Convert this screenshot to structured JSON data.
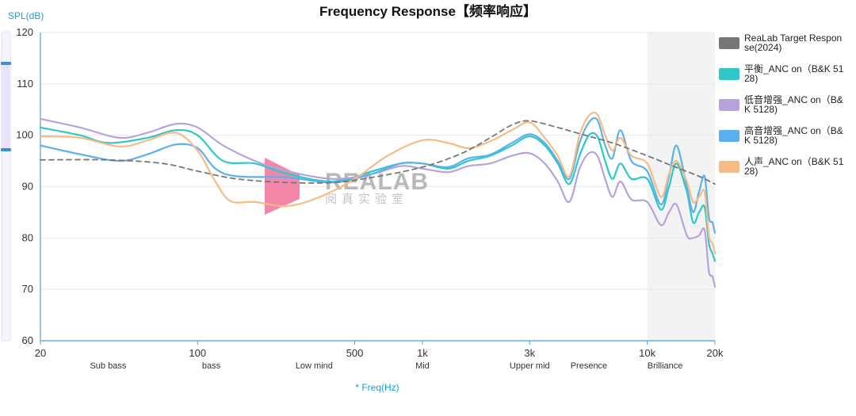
{
  "chart_data": {
    "type": "line",
    "title": "Frequency Response【频率响应】",
    "ylabel": "SPL(dB)",
    "xlabel": "* Freq(Hz)",
    "xscale": "log",
    "xlim": [
      20,
      20000
    ],
    "ylim": [
      60,
      120
    ],
    "y_ticks": [
      60,
      70,
      80,
      90,
      100,
      110,
      120
    ],
    "x_ticks": [
      {
        "value": 20,
        "label": "20"
      },
      {
        "value": 100,
        "label": "100"
      },
      {
        "value": 500,
        "label": "500"
      },
      {
        "value": 1000,
        "label": "1k"
      },
      {
        "value": 3000,
        "label": "3k"
      },
      {
        "value": 10000,
        "label": "10k"
      },
      {
        "value": 20000,
        "label": "20k"
      }
    ],
    "bands": [
      {
        "label": "Sub bass",
        "x": 40
      },
      {
        "label": "bass",
        "x": 115
      },
      {
        "label": "Low mind",
        "x": 330
      },
      {
        "label": "Mid",
        "x": 1000
      },
      {
        "label": "Upper mid",
        "x": 3000
      },
      {
        "label": "Presence",
        "x": 5500
      },
      {
        "label": "Brilliance",
        "x": 12000
      }
    ],
    "shaded_region": [
      10000,
      20000
    ],
    "grid": "horizontal",
    "legend_position": "right",
    "watermark": {
      "brand": "REALAB",
      "sub": "阅真实验室"
    },
    "series": [
      {
        "name": "ReaLab Target Response(2024)",
        "legend_lines": [
          "ReaLab Target Respon",
          "se(2024)"
        ],
        "color": "#777777",
        "dashed": true,
        "points": [
          [
            20,
            95.2
          ],
          [
            40,
            95.2
          ],
          [
            70,
            94.5
          ],
          [
            100,
            93
          ],
          [
            150,
            91.5
          ],
          [
            250,
            90.8
          ],
          [
            400,
            90.8
          ],
          [
            600,
            91.8
          ],
          [
            1000,
            93.8
          ],
          [
            1500,
            96.5
          ],
          [
            2000,
            99.5
          ],
          [
            2500,
            102
          ],
          [
            3000,
            102.8
          ],
          [
            4000,
            101.5
          ],
          [
            5000,
            100.3
          ],
          [
            7000,
            98.5
          ],
          [
            10000,
            96
          ],
          [
            13000,
            94
          ],
          [
            17000,
            92
          ],
          [
            20000,
            90.5
          ]
        ]
      },
      {
        "name": "平衡_ANC on（B&K 5128)",
        "legend_lines": [
          "平衡_ANC on（B&K 51",
          "28)"
        ],
        "color": "#2ec8c8",
        "dashed": false,
        "points": [
          [
            20,
            101.5
          ],
          [
            30,
            100
          ],
          [
            40,
            98.5
          ],
          [
            60,
            99.5
          ],
          [
            80,
            101
          ],
          [
            100,
            100
          ],
          [
            130,
            95
          ],
          [
            180,
            94.5
          ],
          [
            250,
            92.5
          ],
          [
            400,
            91
          ],
          [
            600,
            93
          ],
          [
            800,
            94.5
          ],
          [
            1000,
            94.5
          ],
          [
            1300,
            93.5
          ],
          [
            1600,
            95
          ],
          [
            2000,
            96
          ],
          [
            2500,
            98
          ],
          [
            3000,
            99.8
          ],
          [
            3500,
            98
          ],
          [
            4000,
            94.5
          ],
          [
            4500,
            90.5
          ],
          [
            5000,
            96
          ],
          [
            5500,
            100
          ],
          [
            6000,
            99.8
          ],
          [
            6500,
            95
          ],
          [
            7000,
            91.5
          ],
          [
            7600,
            94.5
          ],
          [
            8500,
            91.5
          ],
          [
            10000,
            91.5
          ],
          [
            11500,
            85.5
          ],
          [
            12500,
            90
          ],
          [
            13500,
            94.5
          ],
          [
            15000,
            89
          ],
          [
            16000,
            83
          ],
          [
            17000,
            85
          ],
          [
            18000,
            86
          ],
          [
            18800,
            79
          ],
          [
            19500,
            77
          ],
          [
            20000,
            75.5
          ]
        ]
      },
      {
        "name": "低音增强_ANC on（B&K 5128)",
        "legend_lines": [
          "低音增强_ANC on（B&",
          "K 5128)"
        ],
        "color": "#b8a2dd",
        "dashed": false,
        "points": [
          [
            20,
            103.2
          ],
          [
            30,
            101.5
          ],
          [
            45,
            99.5
          ],
          [
            60,
            100.5
          ],
          [
            80,
            102.2
          ],
          [
            100,
            101.5
          ],
          [
            130,
            98
          ],
          [
            180,
            95
          ],
          [
            250,
            93
          ],
          [
            400,
            91.5
          ],
          [
            600,
            92.5
          ],
          [
            800,
            94
          ],
          [
            1000,
            93.5
          ],
          [
            1300,
            92.8
          ],
          [
            1600,
            94
          ],
          [
            2000,
            94.5
          ],
          [
            2500,
            96
          ],
          [
            3000,
            96.5
          ],
          [
            3500,
            94.5
          ],
          [
            4000,
            91
          ],
          [
            4500,
            87
          ],
          [
            5000,
            93.5
          ],
          [
            5500,
            96.5
          ],
          [
            6000,
            96
          ],
          [
            6500,
            91.5
          ],
          [
            7000,
            88
          ],
          [
            7600,
            91
          ],
          [
            8500,
            87.5
          ],
          [
            10000,
            87
          ],
          [
            11500,
            82.5
          ],
          [
            12500,
            85
          ],
          [
            13500,
            86.5
          ],
          [
            15000,
            80.5
          ],
          [
            16000,
            80
          ],
          [
            17000,
            80.5
          ],
          [
            18000,
            81.5
          ],
          [
            18800,
            73.5
          ],
          [
            19500,
            72.5
          ],
          [
            20000,
            70.5
          ]
        ]
      },
      {
        "name": "高音增强_ANC on（B&K 5128)",
        "legend_lines": [
          "高音增强_ANC on（B&",
          "K 5128)"
        ],
        "color": "#5cb0ec",
        "dashed": false,
        "points": [
          [
            20,
            98
          ],
          [
            30,
            96.3
          ],
          [
            45,
            95
          ],
          [
            60,
            96.3
          ],
          [
            80,
            98.2
          ],
          [
            100,
            97.5
          ],
          [
            120,
            93.5
          ],
          [
            150,
            92
          ],
          [
            250,
            91.8
          ],
          [
            400,
            90.8
          ],
          [
            600,
            92.5
          ],
          [
            800,
            94.5
          ],
          [
            1000,
            94.5
          ],
          [
            1300,
            93.8
          ],
          [
            1600,
            95.5
          ],
          [
            2000,
            96.2
          ],
          [
            2500,
            98.5
          ],
          [
            3000,
            100.2
          ],
          [
            3500,
            98.5
          ],
          [
            4000,
            95
          ],
          [
            4500,
            91.5
          ],
          [
            5000,
            98.5
          ],
          [
            5500,
            102.5
          ],
          [
            6000,
            103
          ],
          [
            6500,
            98
          ],
          [
            7000,
            95.5
          ],
          [
            7600,
            101
          ],
          [
            8500,
            95
          ],
          [
            10000,
            93
          ],
          [
            11500,
            86.5
          ],
          [
            12500,
            92
          ],
          [
            13500,
            98
          ],
          [
            15000,
            90
          ],
          [
            16000,
            85
          ],
          [
            17000,
            89
          ],
          [
            18000,
            92
          ],
          [
            18800,
            84
          ],
          [
            19500,
            83
          ],
          [
            20000,
            81
          ]
        ]
      },
      {
        "name": "人声_ANC on（B&K 5128)",
        "legend_lines": [
          "人声_ANC on（B&K 51",
          "28)"
        ],
        "color": "#f7bb85",
        "dashed": false,
        "points": [
          [
            20,
            99.8
          ],
          [
            30,
            99.5
          ],
          [
            45,
            97.8
          ],
          [
            60,
            99
          ],
          [
            80,
            100.5
          ],
          [
            100,
            97
          ],
          [
            120,
            91
          ],
          [
            140,
            87.2
          ],
          [
            180,
            87
          ],
          [
            250,
            86.2
          ],
          [
            350,
            88
          ],
          [
            500,
            91.5
          ],
          [
            700,
            96
          ],
          [
            1000,
            99
          ],
          [
            1300,
            98.5
          ],
          [
            1600,
            97.5
          ],
          [
            2000,
            98.8
          ],
          [
            2500,
            101
          ],
          [
            3000,
            102.5
          ],
          [
            3500,
            99.5
          ],
          [
            4000,
            96
          ],
          [
            4500,
            92
          ],
          [
            5000,
            100
          ],
          [
            5500,
            103.8
          ],
          [
            6000,
            104
          ],
          [
            6500,
            100
          ],
          [
            7000,
            97
          ],
          [
            7600,
            99.5
          ],
          [
            8500,
            96
          ],
          [
            10000,
            94.5
          ],
          [
            11500,
            88
          ],
          [
            12500,
            92.5
          ],
          [
            13500,
            95
          ],
          [
            15000,
            91
          ],
          [
            16000,
            87
          ],
          [
            17000,
            88
          ],
          [
            18000,
            89
          ],
          [
            18800,
            80.5
          ],
          [
            19500,
            79
          ],
          [
            20000,
            77
          ]
        ]
      }
    ]
  }
}
